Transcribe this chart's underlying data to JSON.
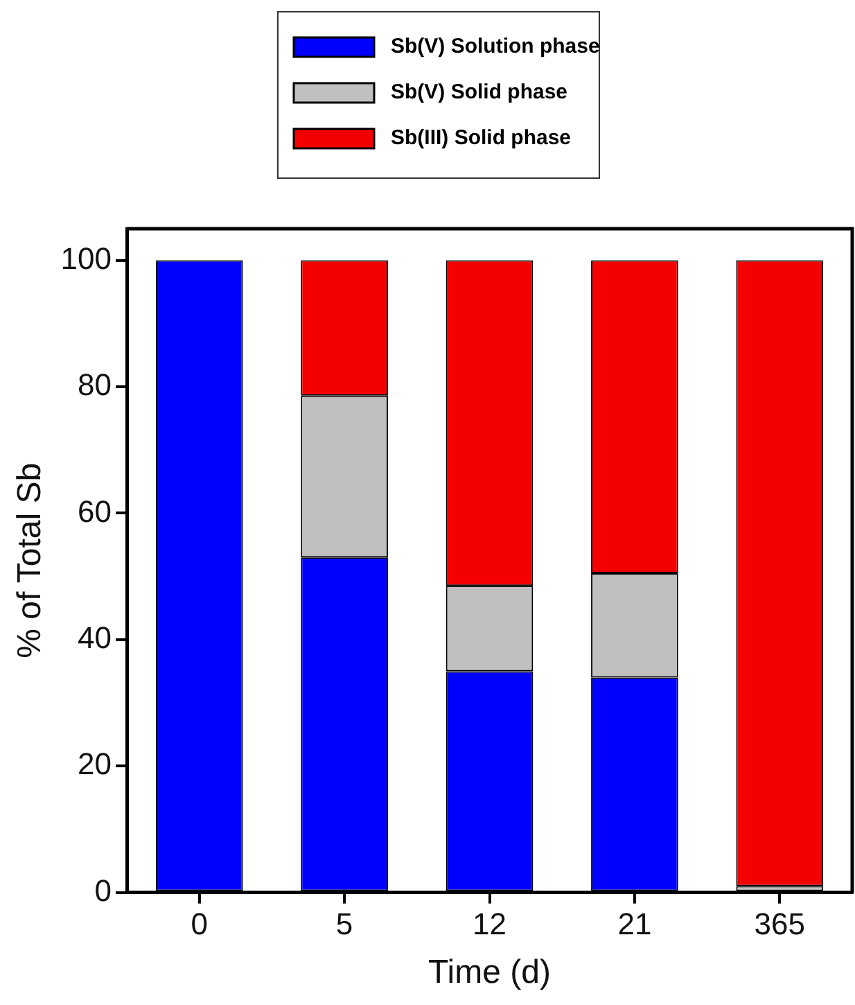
{
  "chart_data": {
    "type": "bar",
    "stacked": true,
    "xlabel": "Time (d)",
    "ylabel": "% of Total Sb",
    "categories": [
      "0",
      "5",
      "12",
      "21",
      "365"
    ],
    "series": [
      {
        "name": "Sb(V) Solution phase",
        "color": "#0000ff",
        "values": [
          100,
          53,
          35,
          34,
          0
        ]
      },
      {
        "name": "Sb(V) Solid phase",
        "color": "#c0c0c0",
        "values": [
          0,
          25.6,
          13.5,
          16.5,
          1
        ]
      },
      {
        "name": "Sb(III) Solid phase",
        "color": "#f40000",
        "values": [
          0,
          21.4,
          51.5,
          49.5,
          99
        ]
      }
    ],
    "ylim": [
      0,
      105
    ],
    "yticks": [
      0,
      20,
      40,
      60,
      80,
      100
    ],
    "legend": "top",
    "grid": false
  }
}
